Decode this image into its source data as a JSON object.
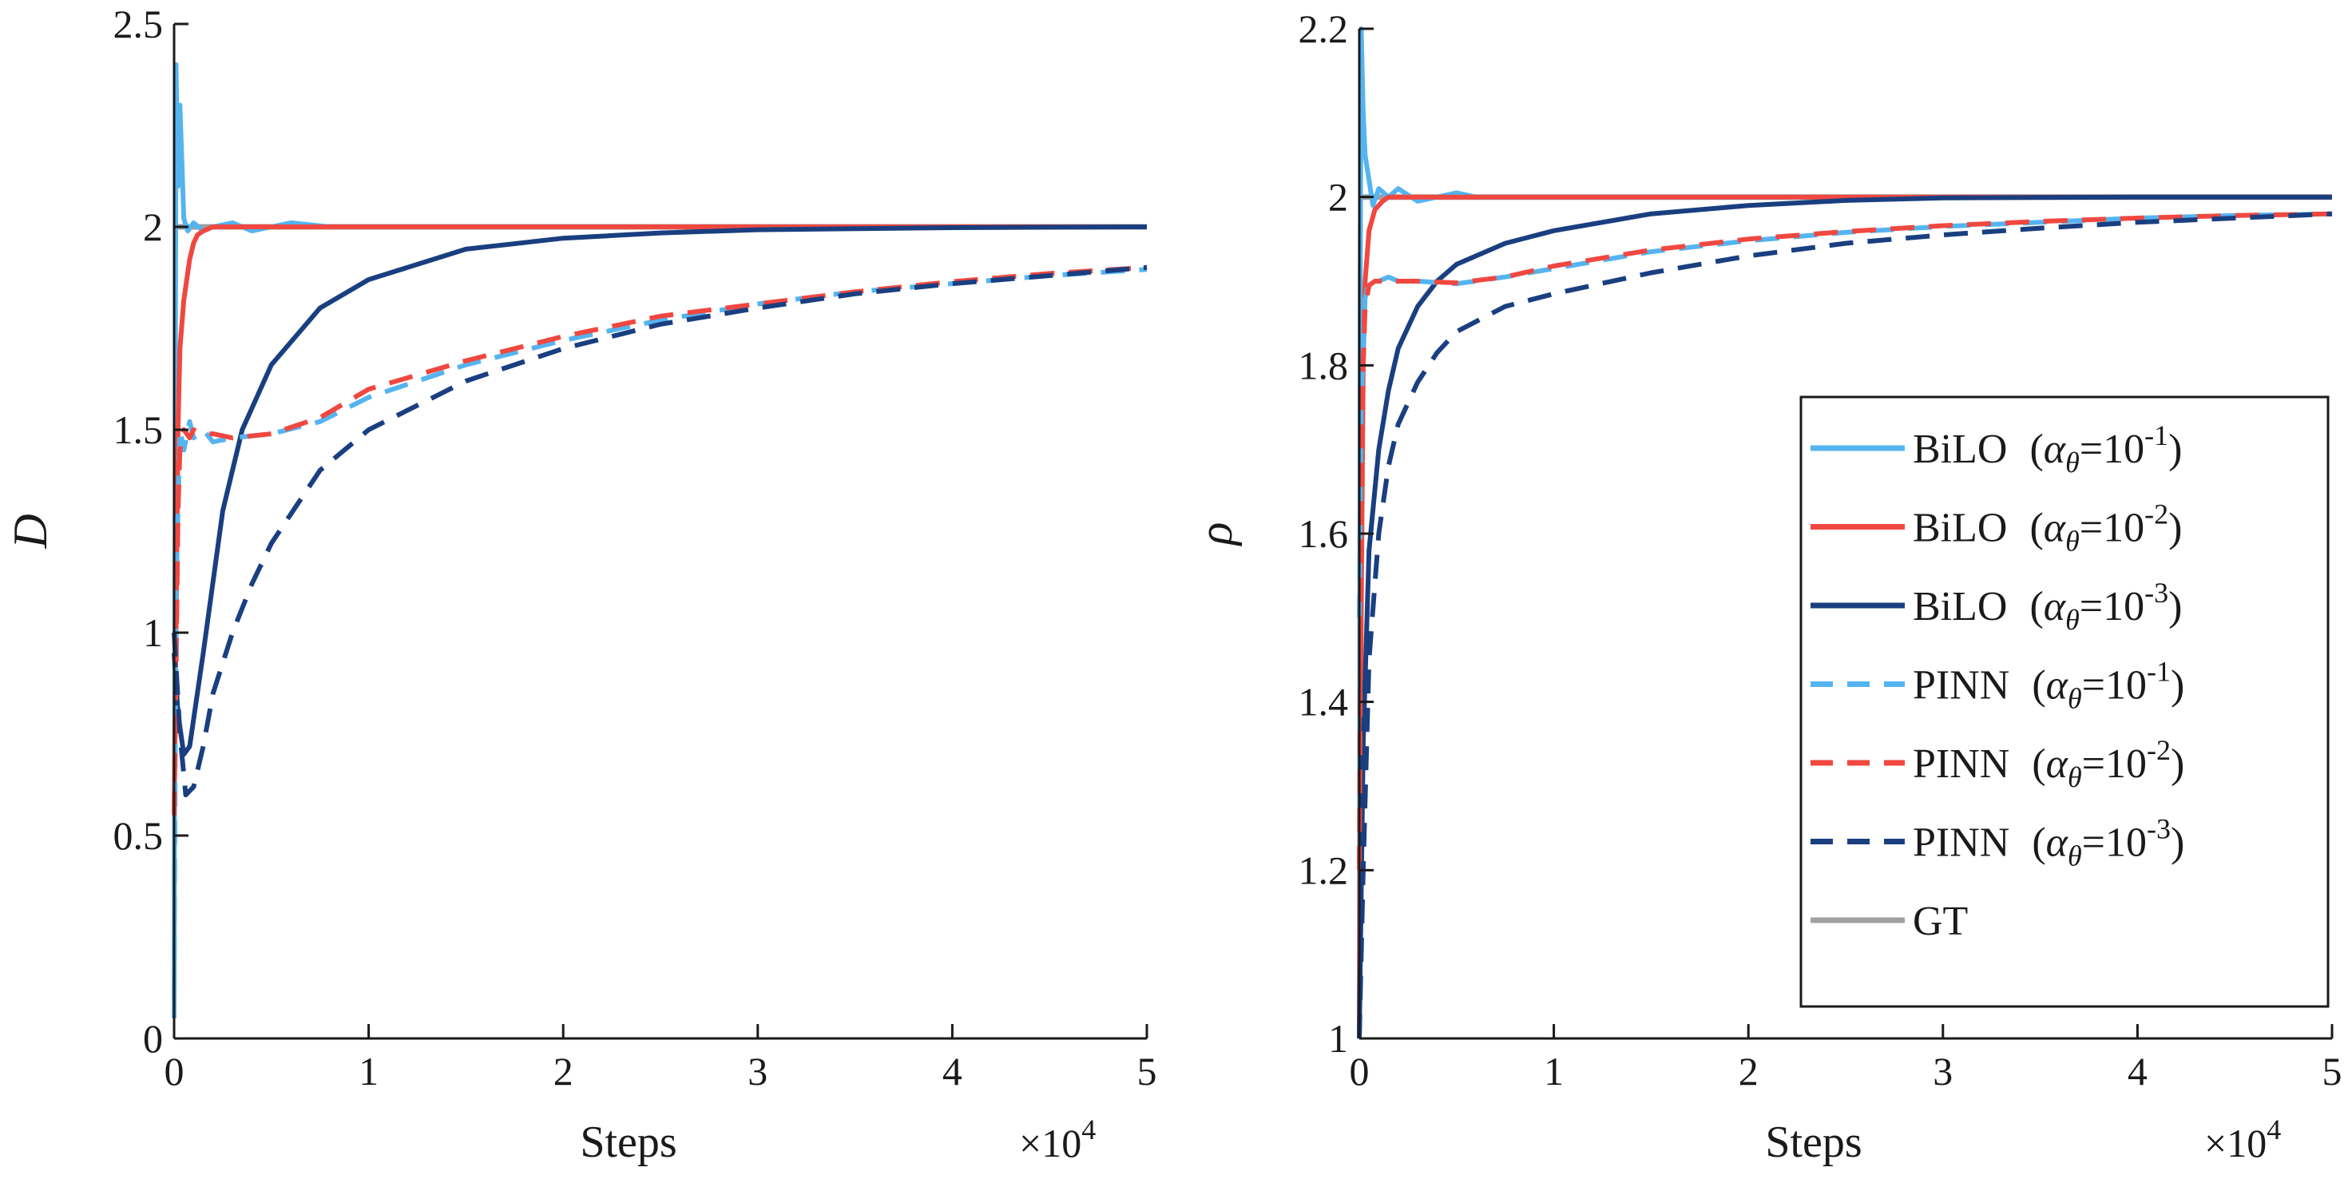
{
  "chart_data": [
    {
      "type": "line",
      "panel": "left",
      "ylabel": "D",
      "xlabel": "Steps",
      "x_multiplier": "×10",
      "x_multiplier_exp": "4",
      "xlim": [
        0,
        5
      ],
      "ylim": [
        0,
        2.5
      ],
      "xticks": [
        "0",
        "1",
        "2",
        "3",
        "4",
        "5"
      ],
      "yticks": [
        "0",
        "0.5",
        "1",
        "1.5",
        "2",
        "2.5"
      ],
      "series": [
        {
          "id": "gt",
          "style": "solid",
          "color": "#a0a0a0",
          "x": [
            0,
            5
          ],
          "y": [
            2.0,
            2.0
          ]
        },
        {
          "id": "bilo1",
          "style": "solid",
          "color": "#55b4f0",
          "x": [
            0,
            0.01,
            0.02,
            0.03,
            0.05,
            0.07,
            0.1,
            0.15,
            0.2,
            0.3,
            0.4,
            0.5,
            0.6,
            0.8,
            1.0,
            5
          ],
          "y": [
            0.05,
            2.4,
            2.1,
            2.3,
            2.02,
            1.99,
            2.01,
            1.99,
            2.0,
            2.01,
            1.99,
            2.0,
            2.01,
            2.0,
            2.0,
            2.0
          ]
        },
        {
          "id": "bilo2",
          "style": "solid",
          "color": "#f04840",
          "x": [
            0,
            0.01,
            0.02,
            0.03,
            0.05,
            0.08,
            0.1,
            0.12,
            0.15,
            0.2,
            5
          ],
          "y": [
            0.55,
            1.0,
            1.5,
            1.7,
            1.82,
            1.92,
            1.96,
            1.98,
            1.99,
            2.0,
            2.0
          ]
        },
        {
          "id": "bilo3",
          "style": "solid",
          "color": "#1a3f80",
          "x": [
            0,
            0.02,
            0.05,
            0.08,
            0.15,
            0.25,
            0.35,
            0.5,
            0.75,
            1.0,
            1.5,
            2.0,
            2.5,
            3.0,
            4.0,
            5.0
          ],
          "y": [
            0.95,
            0.8,
            0.7,
            0.72,
            0.95,
            1.3,
            1.5,
            1.66,
            1.8,
            1.87,
            1.945,
            1.972,
            1.985,
            1.993,
            1.998,
            2.0
          ]
        },
        {
          "id": "pinn1",
          "style": "dashed",
          "color": "#55b4f0",
          "x": [
            0,
            0.01,
            0.03,
            0.05,
            0.08,
            0.1,
            0.15,
            0.2,
            0.3,
            0.5,
            0.75,
            1.0,
            1.5,
            2.0,
            2.5,
            3.0,
            3.5,
            4.0,
            4.5,
            5.0
          ],
          "y": [
            0.1,
            1.1,
            1.5,
            1.45,
            1.52,
            1.48,
            1.5,
            1.47,
            1.48,
            1.49,
            1.52,
            1.58,
            1.66,
            1.72,
            1.77,
            1.81,
            1.84,
            1.86,
            1.88,
            1.895
          ]
        },
        {
          "id": "pinn2",
          "style": "dashed",
          "color": "#f04840",
          "x": [
            0,
            0.01,
            0.02,
            0.03,
            0.05,
            0.08,
            0.1,
            0.15,
            0.2,
            0.3,
            0.5,
            0.75,
            1.0,
            1.5,
            2.0,
            2.5,
            3.0,
            3.5,
            4.0,
            4.5,
            5.0
          ],
          "y": [
            0.55,
            0.9,
            1.3,
            1.45,
            1.5,
            1.48,
            1.5,
            1.49,
            1.49,
            1.48,
            1.49,
            1.53,
            1.6,
            1.67,
            1.73,
            1.78,
            1.81,
            1.84,
            1.865,
            1.885,
            1.9
          ]
        },
        {
          "id": "pinn3",
          "style": "dashed",
          "color": "#1a3f80",
          "x": [
            0,
            0.03,
            0.06,
            0.1,
            0.15,
            0.2,
            0.3,
            0.4,
            0.5,
            0.75,
            1.0,
            1.5,
            2.0,
            2.5,
            3.0,
            3.5,
            4.0,
            4.5,
            5.0
          ],
          "y": [
            1.0,
            0.75,
            0.6,
            0.62,
            0.72,
            0.85,
            1.0,
            1.12,
            1.22,
            1.4,
            1.5,
            1.62,
            1.7,
            1.76,
            1.8,
            1.835,
            1.86,
            1.88,
            1.9
          ]
        }
      ]
    },
    {
      "type": "line",
      "panel": "right",
      "ylabel": "ρ",
      "xlabel": "Steps",
      "x_multiplier": "×10",
      "x_multiplier_exp": "4",
      "xlim": [
        0,
        5
      ],
      "ylim": [
        1,
        2.2
      ],
      "xticks": [
        "0",
        "1",
        "2",
        "3",
        "4",
        "5"
      ],
      "yticks": [
        "1",
        "1.2",
        "1.4",
        "1.6",
        "1.8",
        "2",
        "2.2"
      ],
      "series": [
        {
          "id": "gt",
          "style": "solid",
          "color": "#a0a0a0",
          "x": [
            0,
            5
          ],
          "y": [
            2.0,
            2.0
          ]
        },
        {
          "id": "bilo1",
          "style": "solid",
          "color": "#55b4f0",
          "x": [
            0,
            0.005,
            0.01,
            0.02,
            0.03,
            0.05,
            0.07,
            0.1,
            0.15,
            0.2,
            0.3,
            0.4,
            0.5,
            0.6,
            1.0,
            5
          ],
          "y": [
            1.0,
            1.9,
            2.2,
            2.1,
            2.05,
            2.02,
            1.99,
            2.01,
            2.0,
            2.01,
            1.995,
            2.0,
            2.005,
            2.0,
            2.0,
            2.0
          ]
        },
        {
          "id": "bilo2",
          "style": "solid",
          "color": "#f04840",
          "x": [
            0,
            0.01,
            0.02,
            0.03,
            0.05,
            0.08,
            0.12,
            0.15,
            0.2,
            5
          ],
          "y": [
            1.0,
            1.5,
            1.8,
            1.9,
            1.96,
            1.985,
            1.995,
            2.0,
            2.0,
            2.0
          ]
        },
        {
          "id": "bilo3",
          "style": "solid",
          "color": "#1a3f80",
          "x": [
            0,
            0.02,
            0.05,
            0.1,
            0.15,
            0.2,
            0.3,
            0.4,
            0.5,
            0.75,
            1.0,
            1.5,
            2.0,
            2.5,
            3.0,
            4.0,
            5.0
          ],
          "y": [
            1.0,
            1.35,
            1.58,
            1.7,
            1.77,
            1.82,
            1.87,
            1.9,
            1.92,
            1.945,
            1.96,
            1.98,
            1.99,
            1.996,
            1.999,
            2.0,
            2.0
          ]
        },
        {
          "id": "pinn1",
          "style": "dashed",
          "color": "#55b4f0",
          "x": [
            0,
            0.01,
            0.03,
            0.05,
            0.08,
            0.1,
            0.15,
            0.2,
            0.3,
            0.5,
            0.75,
            1.0,
            1.5,
            2.0,
            2.5,
            3.0,
            3.5,
            4.0,
            4.5,
            5.0
          ],
          "y": [
            1.5,
            1.75,
            1.88,
            1.9,
            1.9,
            1.9,
            1.905,
            1.9,
            1.9,
            1.897,
            1.905,
            1.915,
            1.935,
            1.948,
            1.958,
            1.965,
            1.97,
            1.975,
            1.978,
            1.98
          ]
        },
        {
          "id": "pinn2",
          "style": "dashed",
          "color": "#f04840",
          "x": [
            0,
            0.01,
            0.02,
            0.03,
            0.05,
            0.08,
            0.1,
            0.15,
            0.2,
            0.3,
            0.5,
            0.75,
            1.0,
            1.5,
            2.0,
            2.5,
            3.0,
            3.5,
            4.0,
            4.5,
            5.0
          ],
          "y": [
            1.2,
            1.6,
            1.8,
            1.87,
            1.895,
            1.9,
            1.9,
            1.9,
            1.9,
            1.9,
            1.898,
            1.905,
            1.918,
            1.937,
            1.95,
            1.959,
            1.966,
            1.971,
            1.975,
            1.978,
            1.98
          ]
        },
        {
          "id": "pinn3",
          "style": "dashed",
          "color": "#1a3f80",
          "x": [
            0,
            0.02,
            0.05,
            0.1,
            0.15,
            0.2,
            0.3,
            0.4,
            0.5,
            0.75,
            1.0,
            1.5,
            2.0,
            2.5,
            3.0,
            3.5,
            4.0,
            4.5,
            5.0
          ],
          "y": [
            1.0,
            1.2,
            1.45,
            1.6,
            1.68,
            1.73,
            1.78,
            1.815,
            1.84,
            1.87,
            1.885,
            1.91,
            1.93,
            1.945,
            1.955,
            1.963,
            1.97,
            1.975,
            1.98
          ]
        }
      ]
    }
  ],
  "legend": {
    "placement": "right-panel, right",
    "entries": [
      {
        "series": "bilo1",
        "label": "BiLO",
        "alpha_symbol": "α",
        "alpha_sub": "θ",
        "alpha_value": "=10",
        "alpha_exp": "-1"
      },
      {
        "series": "bilo2",
        "label": "BiLO",
        "alpha_symbol": "α",
        "alpha_sub": "θ",
        "alpha_value": "=10",
        "alpha_exp": "-2"
      },
      {
        "series": "bilo3",
        "label": "BiLO",
        "alpha_symbol": "α",
        "alpha_sub": "θ",
        "alpha_value": "=10",
        "alpha_exp": "-3"
      },
      {
        "series": "pinn1",
        "label": "PINN",
        "alpha_symbol": "α",
        "alpha_sub": "θ",
        "alpha_value": "=10",
        "alpha_exp": "-1"
      },
      {
        "series": "pinn2",
        "label": "PINN",
        "alpha_symbol": "α",
        "alpha_sub": "θ",
        "alpha_value": "=10",
        "alpha_exp": "-2"
      },
      {
        "series": "pinn3",
        "label": "PINN",
        "alpha_symbol": "α",
        "alpha_sub": "θ",
        "alpha_value": "=10",
        "alpha_exp": "-3"
      },
      {
        "series": "gt",
        "label": "GT"
      }
    ]
  }
}
